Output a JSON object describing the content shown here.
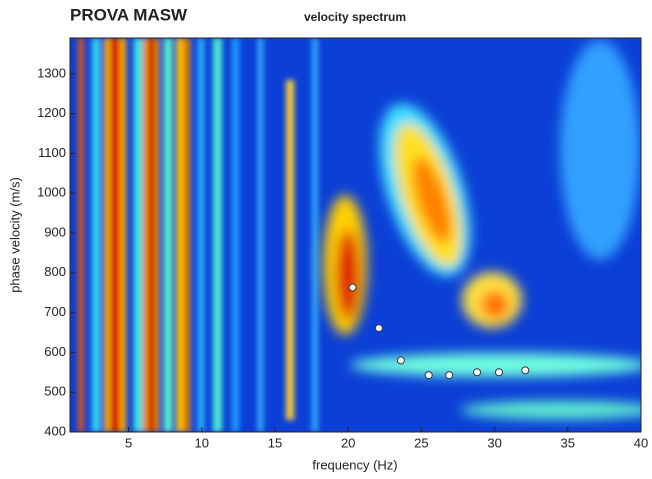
{
  "chart_data": {
    "type": "scatter",
    "title": "PROVA MASW",
    "subtitle": "velocity spectrum",
    "x_label": "frequency (Hz)",
    "y_label": "phase velocity (m/s)",
    "x": [
      20.3,
      22.1,
      23.6,
      25.5,
      26.9,
      28.8,
      30.3,
      32.1
    ],
    "values": [
      763,
      661,
      580,
      543,
      543,
      550,
      550,
      555
    ],
    "color": "#ffffff",
    "xlim": [
      1,
      40
    ],
    "xticks": [
      5,
      10,
      15,
      20,
      25,
      30,
      35,
      40
    ],
    "ylim": [
      400,
      1390
    ],
    "yticks": [
      400,
      500,
      600,
      700,
      800,
      900,
      1000,
      1100,
      1200,
      1300
    ]
  }
}
